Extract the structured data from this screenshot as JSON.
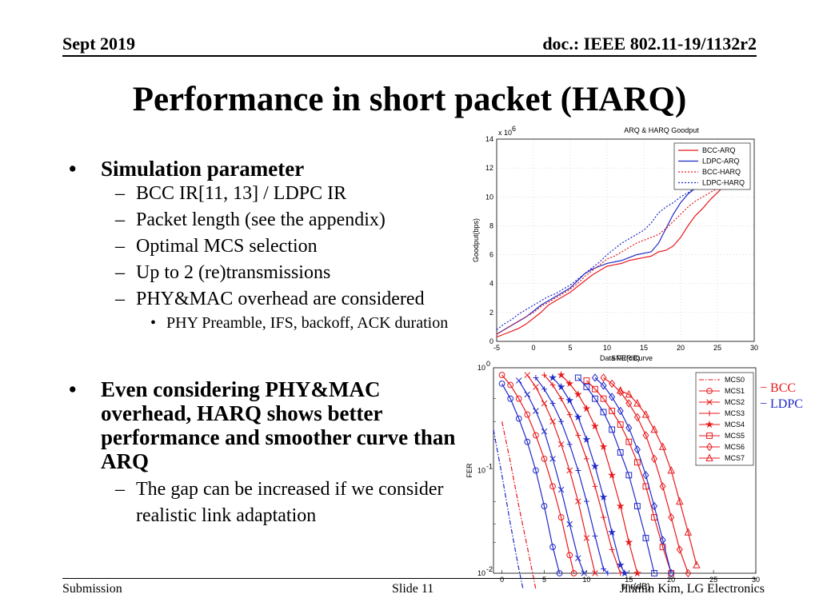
{
  "header": {
    "date": "Sept 2019",
    "doc": "doc.: IEEE 802.11-19/1132r2"
  },
  "title": "Performance in short packet (HARQ)",
  "bullets": [
    {
      "text": "Simulation parameter",
      "sub": [
        {
          "text": "BCC IR[11, 13] / LDPC IR",
          "sub": []
        },
        {
          "text": "Packet length (see the appendix)",
          "sub": []
        },
        {
          "text": "Optimal MCS selection",
          "sub": []
        },
        {
          "text": "Up to 2 (re)transmissions",
          "sub": []
        },
        {
          "text": "PHY&MAC overhead are considered",
          "sub": [
            "PHY Preamble, IFS, backoff, ACK duration"
          ]
        }
      ]
    },
    {
      "text": "Even considering PHY&MAC overhead, HARQ shows better performance and smoother curve than ARQ",
      "sub": [
        {
          "text": "The gap can be increased if we consider realistic link adaptation",
          "sub": []
        }
      ]
    }
  ],
  "footer": {
    "left": "Submission",
    "center": "Slide 11",
    "right": "Jinmin Kim, LG Electronics",
    "overlap": "snr(dB)"
  },
  "annotations": {
    "bcc": "− BCC",
    "ldpc": "− LDPC",
    "bcc_color": "#e8191c",
    "ldpc_color": "#1f28c8"
  },
  "chart_data": [
    {
      "type": "line",
      "title": "ARQ & HARQ Goodput",
      "xlabel": "SNR(dB)",
      "overlap_label": "Data FER Curve",
      "ylabel": "Goodput(bps)",
      "y_exponent_label": "x 10",
      "y_exponent": "6",
      "xlim": [
        -5,
        30
      ],
      "ylim": [
        0,
        14
      ],
      "xticks": [
        -5,
        0,
        5,
        10,
        15,
        20,
        25,
        30
      ],
      "yticks": [
        0,
        2,
        4,
        6,
        8,
        10,
        12,
        14
      ],
      "grid": "dotted",
      "legend": "top-right",
      "series": [
        {
          "name": "BCC-ARQ",
          "color": "#e8191c",
          "dash": "solid",
          "x": [
            -5,
            -4,
            -3,
            -2,
            -1,
            0,
            1,
            2,
            3,
            4,
            5,
            6,
            7,
            8,
            9,
            10,
            11,
            12,
            13,
            14,
            15,
            16,
            17,
            18,
            19,
            20,
            21,
            22,
            23,
            24,
            25,
            26
          ],
          "y": [
            0.3,
            0.5,
            0.7,
            0.9,
            1.2,
            1.6,
            2.0,
            2.5,
            2.8,
            3.1,
            3.4,
            3.8,
            4.2,
            4.6,
            4.9,
            5.2,
            5.3,
            5.4,
            5.6,
            5.7,
            5.8,
            5.9,
            6.2,
            6.3,
            6.6,
            7.2,
            8.0,
            8.7,
            9.2,
            9.8,
            10.3,
            10.8
          ]
        },
        {
          "name": "LDPC-ARQ",
          "color": "#1f28c8",
          "dash": "solid",
          "x": [
            -5,
            -4,
            -3,
            -2,
            -1,
            0,
            1,
            2,
            3,
            4,
            5,
            6,
            7,
            8,
            9,
            10,
            11,
            12,
            13,
            14,
            15,
            16,
            17,
            18,
            19,
            20,
            21,
            22,
            23,
            24,
            25,
            26
          ],
          "y": [
            0.5,
            0.8,
            1.1,
            1.4,
            1.7,
            2.1,
            2.5,
            2.8,
            3.1,
            3.4,
            3.7,
            4.2,
            4.7,
            5.0,
            5.2,
            5.4,
            5.5,
            5.6,
            5.8,
            6.0,
            6.1,
            6.2,
            6.8,
            7.8,
            8.8,
            9.6,
            10.2,
            10.6,
            10.7,
            10.8,
            10.9,
            11.0
          ]
        },
        {
          "name": "BCC-HARQ",
          "color": "#e8191c",
          "dash": "dotted",
          "x": [
            -5,
            -4,
            -3,
            -2,
            -1,
            0,
            1,
            2,
            3,
            4,
            5,
            6,
            7,
            8,
            9,
            10,
            11,
            12,
            13,
            14,
            15,
            16,
            17,
            18,
            19,
            20,
            21,
            22,
            23,
            24,
            25,
            26
          ],
          "y": [
            0.5,
            0.8,
            1.1,
            1.4,
            1.7,
            2.0,
            2.4,
            2.7,
            3.0,
            3.3,
            3.6,
            4.0,
            4.5,
            4.9,
            5.3,
            5.7,
            5.9,
            6.2,
            6.5,
            6.8,
            7.0,
            7.2,
            7.4,
            7.8,
            8.3,
            8.8,
            9.3,
            9.7,
            10.0,
            10.3,
            10.6,
            10.9
          ]
        },
        {
          "name": "LDPC-HARQ",
          "color": "#1f28c8",
          "dash": "dotted",
          "x": [
            -5,
            -4,
            -3,
            -2,
            -1,
            0,
            1,
            2,
            3,
            4,
            5,
            6,
            7,
            8,
            9,
            10,
            11,
            12,
            13,
            14,
            15,
            16,
            17,
            18,
            19,
            20,
            21,
            22,
            23,
            24,
            25,
            26
          ],
          "y": [
            0.8,
            1.2,
            1.5,
            1.9,
            2.2,
            2.5,
            2.8,
            3.1,
            3.3,
            3.6,
            3.9,
            4.3,
            4.7,
            5.1,
            5.5,
            6.0,
            6.4,
            6.8,
            7.1,
            7.4,
            7.7,
            8.2,
            8.9,
            9.3,
            9.6,
            10.0,
            10.3,
            10.6,
            10.7,
            10.8,
            10.9,
            11.0
          ]
        }
      ]
    },
    {
      "type": "line",
      "title": "Data FER Curve",
      "xlabel": "snr(dB)",
      "ylabel": "FER",
      "y_scale": "log",
      "xlim": [
        -1,
        30
      ],
      "ylim": [
        0.01,
        1
      ],
      "xticks": [
        0,
        5,
        10,
        15,
        20,
        25,
        30
      ],
      "ytick_labels": [
        {
          "base": "10",
          "exp": "0",
          "value": 1
        },
        {
          "base": "10",
          "exp": "-1",
          "value": 0.1
        },
        {
          "base": "10",
          "exp": "-2",
          "value": 0.01
        }
      ],
      "legend": "top-right",
      "legend_color": "#e8191c",
      "legend_entries": [
        {
          "name": "MCS0",
          "marker": "none",
          "dash": "dashdot"
        },
        {
          "name": "MCS1",
          "marker": "circle"
        },
        {
          "name": "MCS2",
          "marker": "x"
        },
        {
          "name": "MCS3",
          "marker": "plus"
        },
        {
          "name": "MCS4",
          "marker": "star"
        },
        {
          "name": "MCS5",
          "marker": "square"
        },
        {
          "name": "MCS6",
          "marker": "diamond"
        },
        {
          "name": "MCS7",
          "marker": "triangle"
        }
      ],
      "series": [
        {
          "mcs": "MCS0",
          "code": "BCC",
          "color": "#e8191c",
          "marker": "none",
          "dash": "dashdot",
          "x": [
            0,
            1,
            2,
            3,
            4
          ],
          "y": [
            0.3,
            0.12,
            0.045,
            0.018,
            0.007
          ]
        },
        {
          "mcs": "MCS0",
          "code": "LDPC",
          "color": "#1f28c8",
          "marker": "none",
          "dash": "dashdot",
          "x": [
            -1,
            0,
            1,
            2,
            2.5
          ],
          "y": [
            0.25,
            0.09,
            0.03,
            0.011,
            0.007
          ]
        },
        {
          "mcs": "MCS1",
          "code": "BCC",
          "color": "#e8191c",
          "marker": "circle",
          "dash": "solid",
          "x": [
            0,
            1,
            2,
            3,
            4,
            5,
            6,
            7,
            8,
            8.5
          ],
          "y": [
            0.85,
            0.68,
            0.5,
            0.35,
            0.22,
            0.13,
            0.07,
            0.035,
            0.015,
            0.01
          ]
        },
        {
          "mcs": "MCS1",
          "code": "LDPC",
          "color": "#1f28c8",
          "marker": "circle",
          "dash": "solid",
          "x": [
            0,
            1,
            2,
            3,
            4,
            5,
            6,
            6.8
          ],
          "y": [
            0.7,
            0.5,
            0.32,
            0.19,
            0.1,
            0.045,
            0.018,
            0.01
          ]
        },
        {
          "mcs": "MCS2",
          "code": "BCC",
          "color": "#e8191c",
          "marker": "x",
          "dash": "solid",
          "x": [
            3,
            4,
            5,
            6,
            7,
            8,
            9,
            10,
            11
          ],
          "y": [
            0.85,
            0.65,
            0.45,
            0.3,
            0.18,
            0.1,
            0.05,
            0.022,
            0.01
          ]
        },
        {
          "mcs": "MCS2",
          "code": "LDPC",
          "color": "#1f28c8",
          "marker": "x",
          "dash": "solid",
          "x": [
            2,
            3,
            4,
            5,
            6,
            7,
            8,
            9,
            9.7
          ],
          "y": [
            0.75,
            0.55,
            0.38,
            0.24,
            0.13,
            0.065,
            0.03,
            0.014,
            0.01
          ]
        },
        {
          "mcs": "MCS3",
          "code": "BCC",
          "color": "#e8191c",
          "marker": "plus",
          "dash": "solid",
          "x": [
            5,
            6,
            7,
            8,
            9,
            10,
            11,
            12,
            13,
            14
          ],
          "y": [
            0.85,
            0.68,
            0.5,
            0.35,
            0.22,
            0.13,
            0.07,
            0.035,
            0.017,
            0.01
          ]
        },
        {
          "mcs": "MCS3",
          "code": "LDPC",
          "color": "#1f28c8",
          "marker": "plus",
          "dash": "solid",
          "x": [
            4,
            5,
            6,
            7,
            8,
            9,
            10,
            11,
            12,
            12.5
          ],
          "y": [
            0.8,
            0.62,
            0.45,
            0.3,
            0.18,
            0.1,
            0.05,
            0.023,
            0.011,
            0.01
          ]
        },
        {
          "mcs": "MCS4",
          "code": "BCC",
          "color": "#e8191c",
          "marker": "star",
          "dash": "solid",
          "x": [
            7,
            8,
            9,
            10,
            11,
            12,
            13,
            14,
            15,
            16
          ],
          "y": [
            0.85,
            0.7,
            0.55,
            0.4,
            0.27,
            0.17,
            0.09,
            0.045,
            0.02,
            0.01
          ]
        },
        {
          "mcs": "MCS4",
          "code": "LDPC",
          "color": "#1f28c8",
          "marker": "star",
          "dash": "solid",
          "x": [
            6,
            7,
            8,
            9,
            10,
            11,
            12,
            13,
            14,
            14.5
          ],
          "y": [
            0.8,
            0.65,
            0.48,
            0.33,
            0.2,
            0.11,
            0.055,
            0.025,
            0.012,
            0.01
          ]
        },
        {
          "mcs": "MCS5",
          "code": "BCC",
          "color": "#e8191c",
          "marker": "square",
          "dash": "solid",
          "x": [
            10,
            11,
            12,
            13,
            14,
            15,
            16,
            17,
            18,
            19,
            20
          ],
          "y": [
            0.75,
            0.62,
            0.5,
            0.38,
            0.28,
            0.19,
            0.12,
            0.07,
            0.035,
            0.018,
            0.01
          ]
        },
        {
          "mcs": "MCS5",
          "code": "LDPC",
          "color": "#1f28c8",
          "marker": "square",
          "dash": "solid",
          "x": [
            9,
            10,
            11,
            12,
            13,
            14,
            15,
            16,
            17,
            18
          ],
          "y": [
            0.8,
            0.65,
            0.5,
            0.37,
            0.25,
            0.15,
            0.09,
            0.045,
            0.022,
            0.01
          ]
        },
        {
          "mcs": "MCS6",
          "code": "BCC",
          "color": "#e8191c",
          "marker": "diamond",
          "dash": "solid",
          "x": [
            12,
            13,
            14,
            15,
            16,
            17,
            18,
            19,
            20,
            21,
            22
          ],
          "y": [
            0.8,
            0.7,
            0.58,
            0.45,
            0.33,
            0.22,
            0.13,
            0.07,
            0.035,
            0.017,
            0.01
          ]
        },
        {
          "mcs": "MCS6",
          "code": "LDPC",
          "color": "#1f28c8",
          "marker": "diamond",
          "dash": "solid",
          "x": [
            11,
            12,
            13,
            14,
            15,
            16,
            17,
            18,
            19,
            20
          ],
          "y": [
            0.8,
            0.67,
            0.52,
            0.38,
            0.26,
            0.16,
            0.09,
            0.045,
            0.021,
            0.01
          ]
        },
        {
          "mcs": "MCS7",
          "code": "BCC",
          "color": "#e8191c",
          "marker": "triangle",
          "dash": "solid",
          "x": [
            14,
            15,
            16,
            17,
            18,
            19,
            20,
            21,
            22,
            23
          ],
          "y": [
            0.6,
            0.55,
            0.45,
            0.35,
            0.25,
            0.17,
            0.1,
            0.05,
            0.025,
            0.012
          ]
        }
      ]
    }
  ]
}
